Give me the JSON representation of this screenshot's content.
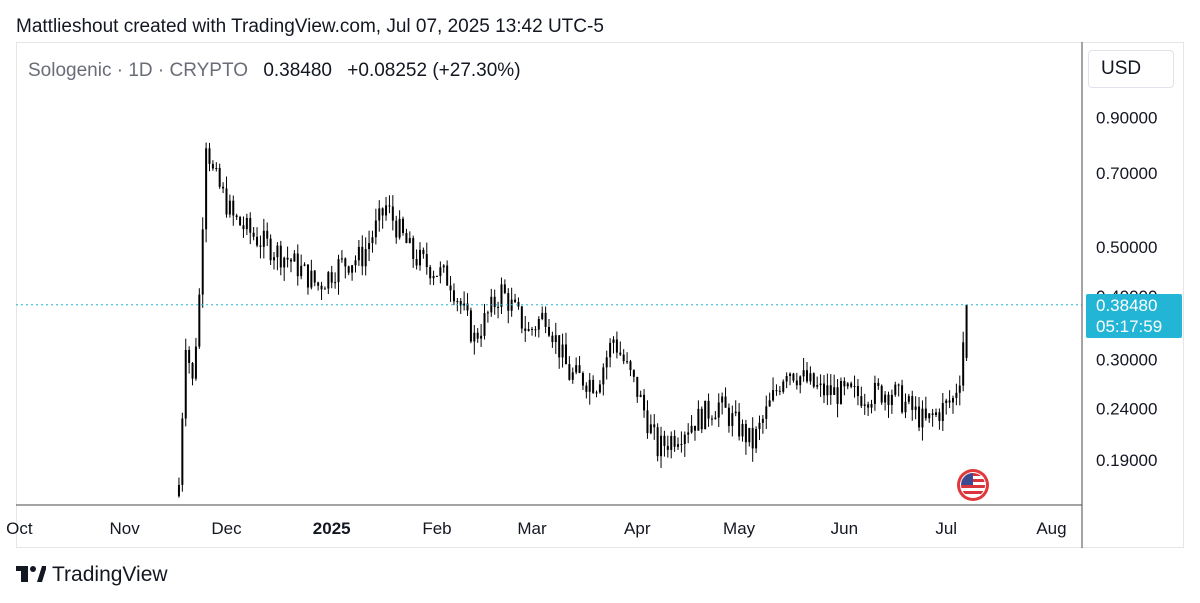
{
  "header": {
    "credit": "Mattlieshout created with TradingView.com, Jul 07, 2025 13:42 UTC-5"
  },
  "legend": {
    "symbol": "Sologenic",
    "interval": "1D",
    "exchange": "CRYPTO",
    "separator": "·",
    "last_price": "0.38480",
    "change": "+0.08252 (+27.30%)"
  },
  "currency_button": {
    "label": "USD"
  },
  "price_tag": {
    "price": "0.38480",
    "countdown": "05:17:59"
  },
  "brand": {
    "name": "TradingView",
    "icon": "tradingview-logo-icon"
  },
  "flag_icon": "us-flag-icon",
  "colors": {
    "candle": "#000000",
    "price_line": "#22b5d6",
    "price_tag_bg": "#22b5d6",
    "axis_text": "#131722",
    "axis_line": "#4a4a4a"
  },
  "chart_data": {
    "type": "candlestick",
    "symbol": "Sologenic",
    "interval": "1D",
    "y_scale": "log",
    "ylim": [
      0.155,
      1.02
    ],
    "y_ticks": [
      {
        "value": 0.9,
        "label": "0.90000"
      },
      {
        "value": 0.7,
        "label": "0.70000"
      },
      {
        "value": 0.5,
        "label": "0.50000"
      },
      {
        "value": 0.4,
        "label": "0.40000"
      },
      {
        "value": 0.3,
        "label": "0.30000"
      },
      {
        "value": 0.24,
        "label": "0.24000"
      },
      {
        "value": 0.19,
        "label": "0.19000"
      }
    ],
    "x_ticks": [
      {
        "date": "2024-10-01",
        "label": "Oct",
        "bold": false
      },
      {
        "date": "2024-11-01",
        "label": "Nov",
        "bold": false
      },
      {
        "date": "2024-12-01",
        "label": "Dec",
        "bold": false
      },
      {
        "date": "2025-01-01",
        "label": "2025",
        "bold": true
      },
      {
        "date": "2025-02-01",
        "label": "Feb",
        "bold": false
      },
      {
        "date": "2025-03-01",
        "label": "Mar",
        "bold": false
      },
      {
        "date": "2025-04-01",
        "label": "Apr",
        "bold": false
      },
      {
        "date": "2025-05-01",
        "label": "May",
        "bold": false
      },
      {
        "date": "2025-06-01",
        "label": "Jun",
        "bold": false
      },
      {
        "date": "2025-07-01",
        "label": "Jul",
        "bold": false
      },
      {
        "date": "2025-08-01",
        "label": "Aug",
        "bold": false
      }
    ],
    "x_range": [
      "2024-09-30",
      "2025-08-10"
    ],
    "current_price": 0.3848,
    "price_line_style": "dotted",
    "anchors": [
      {
        "date": "2024-11-17",
        "close": 0.17
      },
      {
        "date": "2024-11-19",
        "close": 0.33
      },
      {
        "date": "2024-11-21",
        "close": 0.27
      },
      {
        "date": "2024-11-23",
        "close": 0.4
      },
      {
        "date": "2024-11-25",
        "close": 0.82
      },
      {
        "date": "2024-11-27",
        "close": 0.7
      },
      {
        "date": "2024-12-03",
        "close": 0.57
      },
      {
        "date": "2024-12-10",
        "close": 0.52
      },
      {
        "date": "2024-12-20",
        "close": 0.47
      },
      {
        "date": "2024-12-28",
        "close": 0.42
      },
      {
        "date": "2025-01-03",
        "close": 0.46
      },
      {
        "date": "2025-01-10",
        "close": 0.48
      },
      {
        "date": "2025-01-17",
        "close": 0.6
      },
      {
        "date": "2025-01-25",
        "close": 0.48
      },
      {
        "date": "2025-02-05",
        "close": 0.43
      },
      {
        "date": "2025-02-12",
        "close": 0.33
      },
      {
        "date": "2025-02-20",
        "close": 0.41
      },
      {
        "date": "2025-02-28",
        "close": 0.34
      },
      {
        "date": "2025-03-05",
        "close": 0.37
      },
      {
        "date": "2025-03-12",
        "close": 0.28
      },
      {
        "date": "2025-03-20",
        "close": 0.27
      },
      {
        "date": "2025-03-25",
        "close": 0.33
      },
      {
        "date": "2025-04-01",
        "close": 0.26
      },
      {
        "date": "2025-04-07",
        "close": 0.2
      },
      {
        "date": "2025-04-15",
        "close": 0.22
      },
      {
        "date": "2025-04-25",
        "close": 0.245
      },
      {
        "date": "2025-05-05",
        "close": 0.205
      },
      {
        "date": "2025-05-15",
        "close": 0.29
      },
      {
        "date": "2025-05-25",
        "close": 0.26
      },
      {
        "date": "2025-06-05",
        "close": 0.255
      },
      {
        "date": "2025-06-15",
        "close": 0.26
      },
      {
        "date": "2025-06-25",
        "close": 0.225
      },
      {
        "date": "2025-07-03",
        "close": 0.25
      },
      {
        "date": "2025-07-05",
        "close": 0.28
      },
      {
        "date": "2025-07-07",
        "close": 0.3848
      }
    ]
  }
}
